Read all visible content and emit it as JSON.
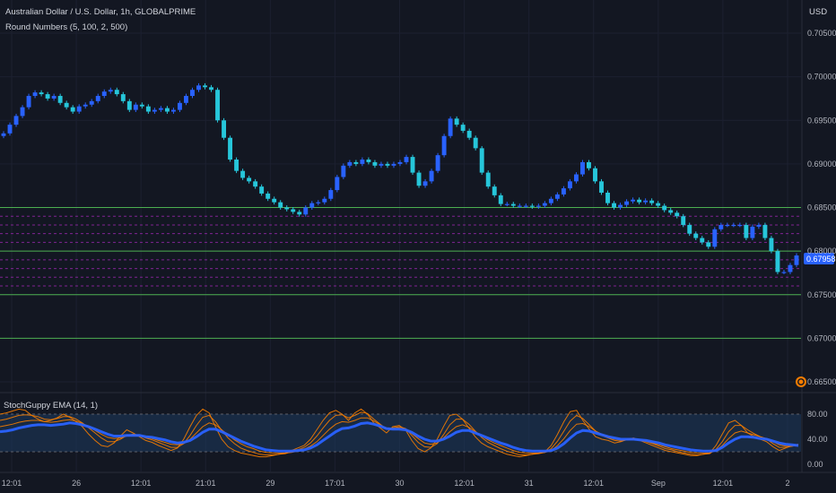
{
  "header": {
    "symbol_title": "Australian Dollar / U.S. Dollar, 1h, GLOBALPRIME",
    "indicator_label": "Round Numbers (5, 100, 2, 500)",
    "currency": "USD"
  },
  "oscillator": {
    "label": "StochGuppy EMA (14, 1)"
  },
  "price_tag": {
    "value": "0.67958",
    "color": "#2962ff"
  },
  "colors": {
    "background": "#131722",
    "bull": "#2962ff",
    "bear": "#26c6da",
    "round_major": "#4caf50",
    "round_minor": "#9c27b0",
    "stoch_fast": "#f57c00",
    "stoch_slow": "#2962ff",
    "band": "#1e3a5f"
  },
  "chart_data": [
    {
      "type": "candlestick",
      "title": "Australian Dollar / U.S. Dollar, 1h, GLOBALPRIME",
      "x_ticks": [
        "12:01",
        "26",
        "12:01",
        "21:01",
        "29",
        "17:01",
        "30",
        "12:01",
        "31",
        "12:01",
        "Sep",
        "12:01",
        "2"
      ],
      "y_ticks": [
        "0.70500",
        "0.70000",
        "0.69500",
        "0.69000",
        "0.68500",
        "0.68000",
        "0.67500",
        "0.67000",
        "0.66500"
      ],
      "ylim": [
        0.6648,
        0.7077
      ],
      "grid": true,
      "last_price": 0.67958,
      "round_levels_major": [
        0.685,
        0.68,
        0.675,
        0.67
      ],
      "round_levels_minor": [
        0.684,
        0.683,
        0.682,
        0.681,
        0.679,
        0.678,
        0.677,
        0.676
      ],
      "close": [
        0.6935,
        0.6945,
        0.6955,
        0.6965,
        0.6978,
        0.6982,
        0.698,
        0.6975,
        0.6978,
        0.697,
        0.6965,
        0.696,
        0.6966,
        0.6968,
        0.6972,
        0.6978,
        0.6983,
        0.6985,
        0.698,
        0.6972,
        0.6962,
        0.6968,
        0.6966,
        0.696,
        0.6962,
        0.6964,
        0.696,
        0.6962,
        0.697,
        0.6978,
        0.6985,
        0.699,
        0.6988,
        0.6985,
        0.695,
        0.693,
        0.6905,
        0.6892,
        0.6884,
        0.688,
        0.6874,
        0.6866,
        0.686,
        0.6856,
        0.685,
        0.6848,
        0.6845,
        0.6842,
        0.685,
        0.6855,
        0.6856,
        0.686,
        0.687,
        0.6885,
        0.6898,
        0.6902,
        0.69,
        0.6905,
        0.6902,
        0.6898,
        0.69,
        0.6898,
        0.69,
        0.6902,
        0.6908,
        0.689,
        0.6875,
        0.688,
        0.6892,
        0.691,
        0.6932,
        0.6952,
        0.6945,
        0.6938,
        0.693,
        0.6918,
        0.689,
        0.6874,
        0.6864,
        0.6854,
        0.6854,
        0.6852,
        0.6852,
        0.6852,
        0.6851,
        0.6852,
        0.6855,
        0.686,
        0.6865,
        0.6872,
        0.688,
        0.6888,
        0.6902,
        0.6895,
        0.688,
        0.6867,
        0.6855,
        0.685,
        0.6853,
        0.6857,
        0.6859,
        0.6856,
        0.6858,
        0.6855,
        0.6852,
        0.6847,
        0.6844,
        0.684,
        0.683,
        0.682,
        0.6815,
        0.681,
        0.6805,
        0.6825,
        0.683,
        0.683,
        0.683,
        0.683,
        0.6815,
        0.6828,
        0.683,
        0.6815,
        0.68,
        0.6776,
        0.6776,
        0.6784,
        0.6795
      ]
    },
    {
      "type": "line",
      "title": "StochGuppy EMA (14, 1)",
      "y_ticks": [
        "80.00",
        "40.00",
        "0.00"
      ],
      "ylim": [
        -12,
        90
      ],
      "band": [
        20,
        80
      ],
      "series": [
        {
          "values": [
            80,
            82,
            85,
            88,
            86,
            78,
            72,
            68,
            70,
            74,
            80,
            75,
            68,
            60,
            48,
            38,
            30,
            28,
            34,
            45,
            55,
            50,
            44,
            38,
            35,
            30,
            26,
            22,
            26,
            40,
            60,
            78,
            88,
            82,
            60,
            40,
            28,
            22,
            18,
            16,
            14,
            12,
            12,
            14,
            16,
            18,
            22,
            26,
            30,
            40,
            55,
            70,
            82,
            86,
            80,
            70,
            82,
            88,
            80,
            66,
            58,
            50,
            60,
            62,
            55,
            38,
            25,
            20,
            26,
            40,
            60,
            78,
            80,
            72,
            58,
            44,
            34,
            28,
            24,
            20,
            16,
            14,
            12,
            14,
            16,
            18,
            20,
            30,
            48,
            68,
            84,
            86,
            70,
            56,
            44,
            40,
            38,
            34,
            36,
            40,
            42,
            38,
            34,
            30,
            26,
            22,
            20,
            18,
            16,
            14,
            14,
            16,
            18,
            30,
            48,
            66,
            70,
            62,
            50,
            44,
            40,
            36,
            28,
            22,
            26,
            30,
            32
          ]
        },
        {
          "values": [
            70,
            72,
            75,
            78,
            79,
            78,
            76,
            72,
            71,
            73,
            76,
            76,
            72,
            66,
            58,
            50,
            42,
            36,
            36,
            40,
            46,
            48,
            46,
            42,
            39,
            35,
            31,
            27,
            27,
            33,
            46,
            62,
            75,
            78,
            68,
            54,
            42,
            33,
            26,
            22,
            19,
            16,
            15,
            15,
            16,
            17,
            20,
            23,
            27,
            34,
            45,
            58,
            70,
            78,
            79,
            74,
            78,
            83,
            81,
            72,
            64,
            56,
            58,
            60,
            57,
            46,
            35,
            28,
            27,
            33,
            47,
            63,
            72,
            72,
            64,
            53,
            43,
            35,
            30,
            25,
            21,
            18,
            15,
            15,
            16,
            17,
            19,
            25,
            37,
            53,
            69,
            78,
            73,
            63,
            53,
            46,
            42,
            38,
            37,
            39,
            41,
            39,
            36,
            33,
            29,
            25,
            23,
            20,
            18,
            16,
            15,
            16,
            17,
            24,
            36,
            52,
            62,
            62,
            55,
            49,
            44,
            40,
            33,
            27,
            27,
            29,
            31
          ]
        },
        {
          "values": [
            60,
            62,
            64,
            67,
            69,
            70,
            70,
            68,
            67,
            68,
            70,
            71,
            69,
            65,
            60,
            54,
            48,
            43,
            41,
            42,
            45,
            46,
            45,
            43,
            41,
            38,
            35,
            32,
            31,
            33,
            40,
            50,
            60,
            66,
            63,
            55,
            47,
            39,
            33,
            28,
            25,
            21,
            19,
            18,
            18,
            18,
            19,
            21,
            24,
            29,
            36,
            46,
            56,
            64,
            68,
            67,
            70,
            74,
            74,
            69,
            63,
            57,
            57,
            58,
            56,
            49,
            41,
            34,
            32,
            34,
            42,
            52,
            60,
            63,
            59,
            52,
            45,
            39,
            34,
            30,
            26,
            22,
            19,
            18,
            18,
            18,
            19,
            22,
            30,
            41,
            54,
            64,
            65,
            60,
            53,
            48,
            44,
            40,
            39,
            39,
            40,
            39,
            37,
            34,
            31,
            28,
            25,
            23,
            21,
            19,
            18,
            18,
            18,
            22,
            30,
            41,
            50,
            53,
            50,
            47,
            44,
            41,
            36,
            31,
            29,
            29,
            30
          ]
        },
        {
          "values": [
            52,
            53,
            55,
            58,
            60,
            62,
            63,
            63,
            62,
            63,
            64,
            66,
            65,
            63,
            60,
            56,
            52,
            48,
            45,
            45,
            46,
            46,
            46,
            44,
            43,
            41,
            39,
            36,
            34,
            35,
            38,
            44,
            51,
            56,
            56,
            52,
            47,
            42,
            37,
            33,
            29,
            26,
            23,
            22,
            21,
            21,
            21,
            22,
            23,
            26,
            31,
            38,
            45,
            52,
            57,
            58,
            61,
            65,
            66,
            64,
            61,
            57,
            56,
            56,
            55,
            51,
            45,
            40,
            37,
            37,
            40,
            45,
            51,
            54,
            54,
            50,
            46,
            42,
            38,
            34,
            31,
            27,
            24,
            22,
            21,
            21,
            21,
            22,
            26,
            33,
            42,
            50,
            54,
            53,
            50,
            47,
            44,
            42,
            40,
            40,
            40,
            39,
            38,
            36,
            34,
            31,
            29,
            27,
            25,
            23,
            22,
            21,
            21,
            22,
            27,
            34,
            40,
            44,
            44,
            43,
            41,
            40,
            37,
            34,
            32,
            31,
            30
          ]
        }
      ]
    }
  ]
}
